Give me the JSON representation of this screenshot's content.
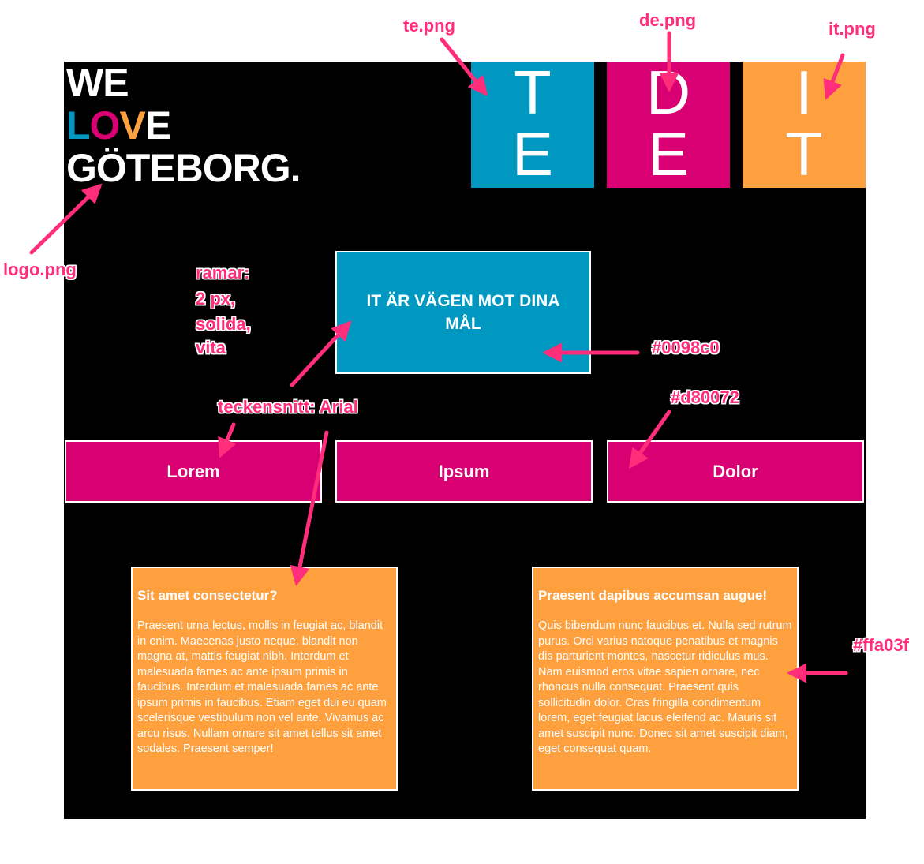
{
  "logo": {
    "line1": "WE",
    "line2_parts": [
      "L",
      "O",
      "V",
      "E"
    ],
    "line3": "GÖTEBORG.",
    "colors": {
      "blue": "#0098c0",
      "pink": "#d80072",
      "orange": "#ffa03f"
    }
  },
  "tiles": [
    {
      "top": "T",
      "bottom": "E",
      "color": "#0098c0"
    },
    {
      "top": "D",
      "bottom": "E",
      "color": "#d80072"
    },
    {
      "top": "I",
      "bottom": "T",
      "color": "#ffa03f"
    }
  ],
  "hero": {
    "text": "IT ÄR VÄGEN MOT DINA MÅL"
  },
  "nav": [
    "Lorem",
    "Ipsum",
    "Dolor"
  ],
  "articles": [
    {
      "title": "Sit amet consectetur?",
      "body": "Praesent urna lectus, mollis in feugiat ac, blandit in enim. Maecenas justo neque, blandit non magna at, mattis feugiat nibh. Interdum et malesuada fames ac ante ipsum primis in faucibus. Interdum et malesuada fames ac ante ipsum primis in faucibus. Etiam eget dui eu quam scelerisque vestibulum non vel ante. Vivamus ac arcu risus. Nullam ornare sit amet tellus sit amet sodales. Praesent semper!"
    },
    {
      "title": "Praesent dapibus accumsan augue!",
      "body": "Quis bibendum nunc faucibus et. Nulla sed rutrum purus. Orci varius natoque penatibus et magnis dis parturient montes, nascetur ridiculus mus. Nam euismod eros vitae sapien ornare, nec rhoncus nulla consequat. Praesent quis sollicitudin dolor. Cras fringilla condimentum lorem, eget feugiat lacus eleifend ac. Mauris sit amet suscipit nunc. Donec sit amet suscipit diam, eget consequat quam."
    }
  ],
  "annotations": {
    "te": "te.png",
    "de": "de.png",
    "it": "it.png",
    "logo": "logo.png",
    "frames_1": "ramar:",
    "frames_2": "2 px,",
    "frames_3": "solida,",
    "frames_4": "vita",
    "hero_color": "#0098c0",
    "nav_color": "#d80072",
    "font": "teckensnitt: Arial",
    "article_color": "#ffa03f",
    "arrow_color": "#ff2d7a"
  }
}
